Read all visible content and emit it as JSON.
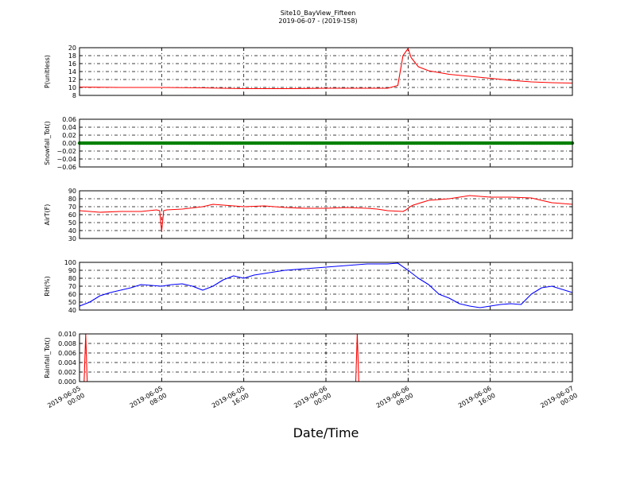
{
  "figure": {
    "title": "Site10_BayView_Fifteen",
    "subtitle": "2019-06-07 - (2019-158)",
    "xlabel": "Date/Time"
  },
  "chart_data": [
    {
      "type": "line",
      "ylabel": "P(unitless)",
      "ylim": [
        8,
        20
      ],
      "yticks": [
        8,
        10,
        12,
        14,
        16,
        18,
        20
      ],
      "ytick_labels": [
        "8",
        "10",
        "12",
        "14",
        "16",
        "18",
        "20"
      ],
      "color": "#ff0000",
      "x": [
        0,
        4,
        8,
        12,
        16,
        18,
        20,
        24,
        28,
        30,
        31,
        31.5,
        32,
        32.3,
        33,
        34,
        36,
        38,
        40,
        42,
        44,
        46,
        48
      ],
      "values": [
        10.1,
        10.0,
        10.0,
        9.9,
        9.7,
        9.7,
        9.7,
        9.8,
        9.8,
        9.8,
        10.5,
        18.0,
        19.8,
        17.5,
        15.2,
        14.2,
        13.3,
        12.8,
        12.3,
        11.8,
        11.4,
        11.2,
        11.1
      ]
    },
    {
      "type": "scatter",
      "ylabel": "Snowfall_Tot()",
      "ylim": [
        -0.06,
        0.06
      ],
      "yticks": [
        -0.06,
        -0.04,
        -0.02,
        0.0,
        0.02,
        0.04,
        0.06
      ],
      "ytick_labels": [
        "−0.06",
        "−0.04",
        "−0.02",
        "0.00",
        "0.02",
        "0.04",
        "0.06"
      ],
      "color": "#008000",
      "constant_value": 0.0,
      "x_start": 0,
      "x_end": 48
    },
    {
      "type": "line",
      "ylabel": "AirT(F)",
      "ylim": [
        30,
        90
      ],
      "yticks": [
        30,
        40,
        50,
        60,
        70,
        80,
        90
      ],
      "ytick_labels": [
        "30",
        "40",
        "50",
        "60",
        "70",
        "80",
        "90"
      ],
      "color": "#ff0000",
      "x": [
        0,
        2,
        4,
        6,
        7.5,
        7.8,
        8.0,
        8.2,
        8.5,
        10,
        12,
        13,
        14,
        15,
        16,
        18,
        20,
        22,
        24,
        26,
        28,
        29,
        30,
        31.5,
        31.8,
        32.0,
        32.2,
        32.5,
        34,
        36,
        38,
        40,
        42,
        44,
        46,
        48
      ],
      "values": [
        65,
        63,
        64,
        64,
        66,
        65,
        39,
        65,
        66,
        67,
        70,
        73,
        72,
        71,
        70,
        71,
        69,
        68,
        68,
        69,
        68,
        67,
        65,
        64,
        66,
        68,
        70,
        72,
        78,
        80,
        84,
        82,
        82,
        81,
        75,
        73
      ]
    },
    {
      "type": "line",
      "ylabel": "RH(%)",
      "ylim": [
        40,
        100
      ],
      "yticks": [
        40,
        50,
        60,
        70,
        80,
        90,
        100
      ],
      "ytick_labels": [
        "40",
        "50",
        "60",
        "70",
        "80",
        "90",
        "100"
      ],
      "color": "#0000ff",
      "x": [
        0,
        1,
        2,
        3,
        4,
        5,
        6,
        7,
        8,
        9,
        10,
        11,
        12,
        13,
        14,
        15,
        16,
        17,
        18,
        19,
        20,
        22,
        24,
        26,
        28,
        30,
        31,
        32,
        33,
        34,
        35,
        36,
        37,
        38,
        39,
        40,
        41,
        42,
        43,
        44,
        45,
        46,
        47,
        48
      ],
      "values": [
        45,
        50,
        58,
        62,
        65,
        68,
        72,
        71,
        70,
        72,
        73,
        70,
        65,
        70,
        78,
        83,
        80,
        84,
        86,
        88,
        90,
        92,
        94,
        96,
        98,
        98,
        99,
        90,
        80,
        72,
        60,
        55,
        48,
        45,
        43,
        45,
        47,
        48,
        47,
        60,
        68,
        70,
        66,
        62
      ]
    },
    {
      "type": "line",
      "ylabel": "Rainfall_Tot()",
      "ylim": [
        0.0,
        0.01
      ],
      "yticks": [
        0.0,
        0.002,
        0.004,
        0.006,
        0.008,
        0.01
      ],
      "ytick_labels": [
        "0.000",
        "0.002",
        "0.004",
        "0.006",
        "0.008",
        "0.010"
      ],
      "color": "#ff0000",
      "x": [
        0,
        0.45,
        0.6,
        0.75,
        26.9,
        27.05,
        27.2,
        48
      ],
      "values": [
        0,
        0,
        0.01,
        0,
        0,
        0.01,
        0,
        0
      ]
    }
  ],
  "xaxis": {
    "range_hours": [
      0,
      48
    ],
    "ticks_hours": [
      0,
      8,
      16,
      24,
      32,
      40,
      48
    ],
    "tick_labels": [
      [
        "2019-06-05",
        "00:00"
      ],
      [
        "2019-06-05",
        "08:00"
      ],
      [
        "2019-06-05",
        "16:00"
      ],
      [
        "2019-06-06",
        "00:00"
      ],
      [
        "2019-06-06",
        "08:00"
      ],
      [
        "2019-06-06",
        "16:00"
      ],
      [
        "2019-06-07",
        "00:00"
      ]
    ]
  }
}
